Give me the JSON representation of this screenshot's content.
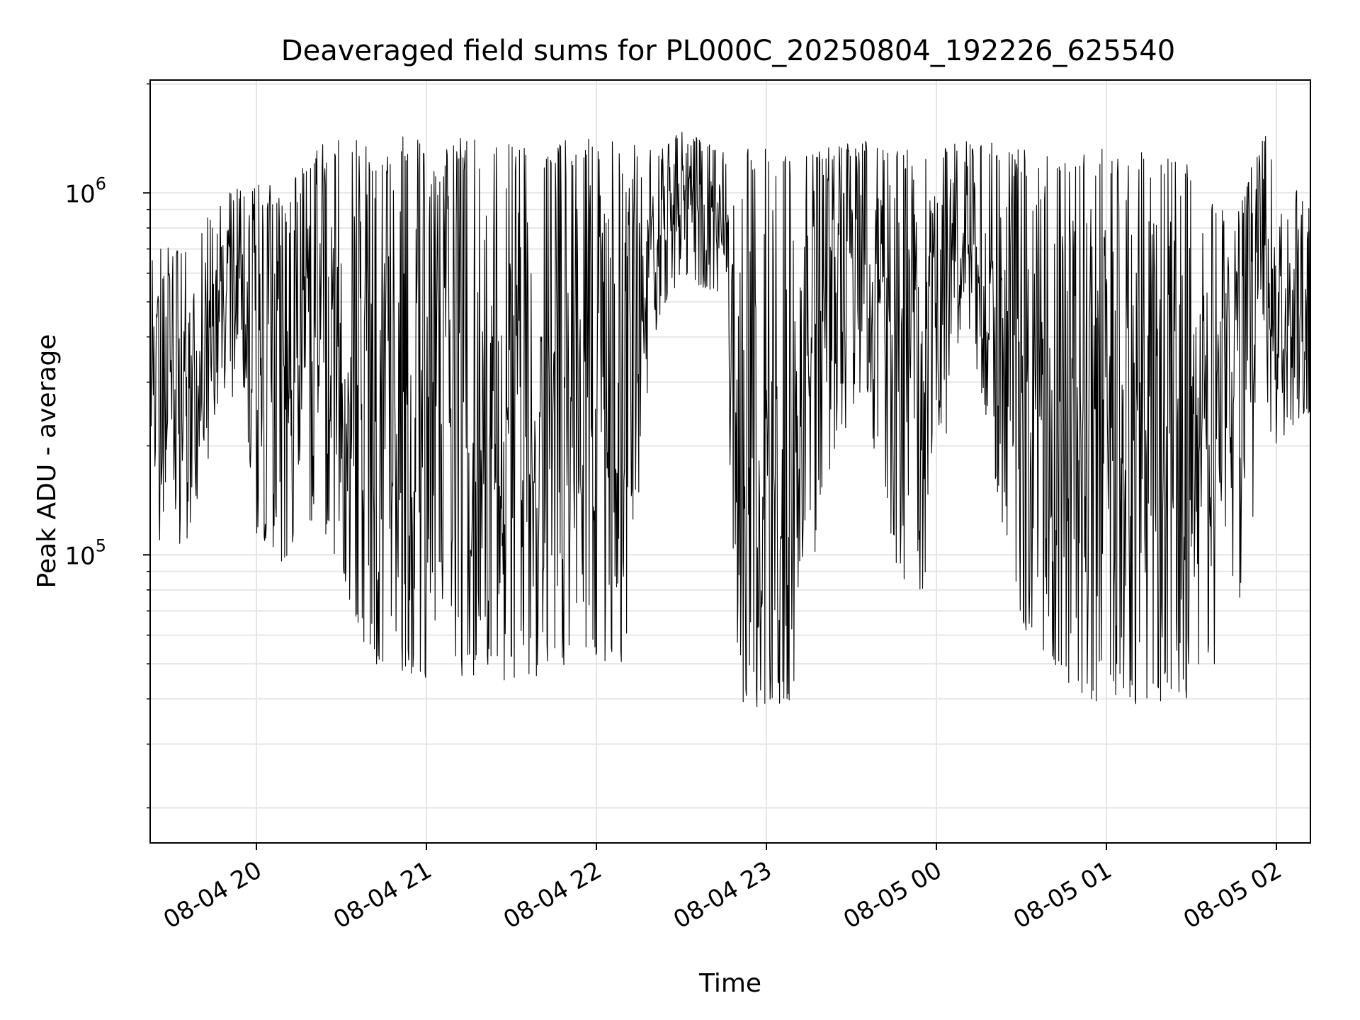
{
  "chart_data": {
    "type": "line",
    "title": "Deaveraged field sums for PL000C_20250804_192226_625540",
    "xlabel": "Time",
    "ylabel": "Peak ADU - average",
    "xscale": "time",
    "yscale": "log",
    "xlim": [
      "2025-08-04 19:22:30",
      "2025-08-05 02:12:00"
    ],
    "ylim": [
      16000,
      2050000
    ],
    "grid": true,
    "line_color": "#000000",
    "grid_color": "#e6e6e6",
    "x_ticks": [
      {
        "value": "2025-08-04 20:00",
        "label": "08-04 20"
      },
      {
        "value": "2025-08-04 21:00",
        "label": "08-04 21"
      },
      {
        "value": "2025-08-04 22:00",
        "label": "08-04 22"
      },
      {
        "value": "2025-08-04 23:00",
        "label": "08-04 23"
      },
      {
        "value": "2025-08-05 00:00",
        "label": "08-05 00"
      },
      {
        "value": "2025-08-05 01:00",
        "label": "08-05 01"
      },
      {
        "value": "2025-08-05 02:00",
        "label": "08-05 02"
      }
    ],
    "y_ticks": [
      {
        "value": 100000,
        "base": "10",
        "exp": "5"
      },
      {
        "value": 1000000,
        "base": "10",
        "exp": "6"
      }
    ],
    "series": [
      {
        "x_start": "2025-08-04 19:22:30",
        "x_end": "2025-08-05 02:12:00",
        "n_points": 2200,
        "envelope": {
          "times": [
            "2025-08-04 19:22",
            "2025-08-04 19:35",
            "2025-08-04 19:50",
            "2025-08-04 20:00",
            "2025-08-04 20:10",
            "2025-08-04 20:22",
            "2025-08-04 20:40",
            "2025-08-04 21:00",
            "2025-08-04 21:30",
            "2025-08-04 21:50",
            "2025-08-04 22:10",
            "2025-08-04 22:20",
            "2025-08-04 22:30",
            "2025-08-04 22:45",
            "2025-08-04 22:50",
            "2025-08-04 23:10",
            "2025-08-04 23:20",
            "2025-08-04 23:35",
            "2025-08-04 23:42",
            "2025-08-04 23:55",
            "2025-08-05 00:10",
            "2025-08-05 00:30",
            "2025-08-05 00:50",
            "2025-08-05 01:05",
            "2025-08-05 01:30",
            "2025-08-05 01:45",
            "2025-08-05 01:55",
            "2025-08-05 02:12"
          ],
          "high": [
            700000,
            750000,
            1000000,
            1100000,
            1000000,
            1400000,
            1400000,
            1450000,
            1400000,
            1400000,
            1450000,
            1300000,
            1500000,
            1300000,
            1350000,
            1350000,
            1350000,
            1400000,
            1300000,
            1350000,
            1400000,
            1350000,
            1300000,
            1350000,
            1200000,
            800000,
            1500000,
            900000
          ],
          "low": [
            110000,
            100000,
            300000,
            110000,
            90000,
            130000,
            50000,
            45000,
            45000,
            48000,
            50000,
            400000,
            600000,
            500000,
            38000,
            38000,
            150000,
            300000,
            100000,
            70000,
            500000,
            60000,
            40000,
            38000,
            40000,
            60000,
            180000,
            250000
          ]
        }
      }
    ]
  }
}
